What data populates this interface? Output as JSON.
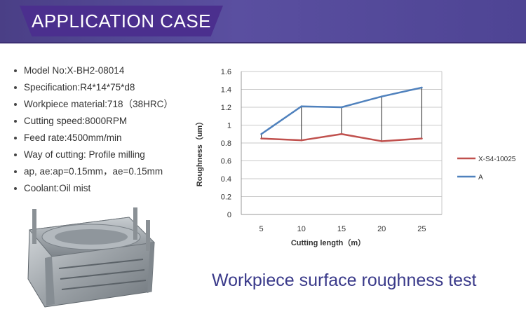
{
  "header": {
    "title": "APPLICATION CASE"
  },
  "specs": [
    "Model No:X-BH2-08014",
    "Specification:R4*14*75*d8",
    "Workpiece material:718（38HRC）",
    "Cutting speed:8000RPM",
    "Feed rate:4500mm/min",
    "Way of cutting: Profile milling",
    "ap, ae:ap=0.15mm，ae=0.15mm",
    "Coolant:Oil mist"
  ],
  "caption": "Workpiece surface roughness test",
  "colors": {
    "banner": "#4a3f86",
    "caption": "#3a3a8a"
  },
  "chart_data": {
    "type": "line",
    "x": [
      5,
      10,
      15,
      20,
      25
    ],
    "series": [
      {
        "name": "X-S4-10025",
        "color": "#c0504d",
        "values": [
          0.85,
          0.83,
          0.9,
          0.82,
          0.85
        ]
      },
      {
        "name": "A",
        "color": "#4f81bd",
        "values": [
          0.9,
          1.21,
          1.2,
          1.32,
          1.42
        ]
      }
    ],
    "xlabel": "Cutting length（m）",
    "ylabel": "Roughness（um）",
    "ylim": [
      0,
      1.6
    ],
    "yticks": [
      "0",
      "0.2",
      "0.4",
      "0.6",
      "0.8",
      "1",
      "1.2",
      "1.4",
      "1.6"
    ],
    "grid": true,
    "legend_position": "right",
    "drop_lines": true
  }
}
